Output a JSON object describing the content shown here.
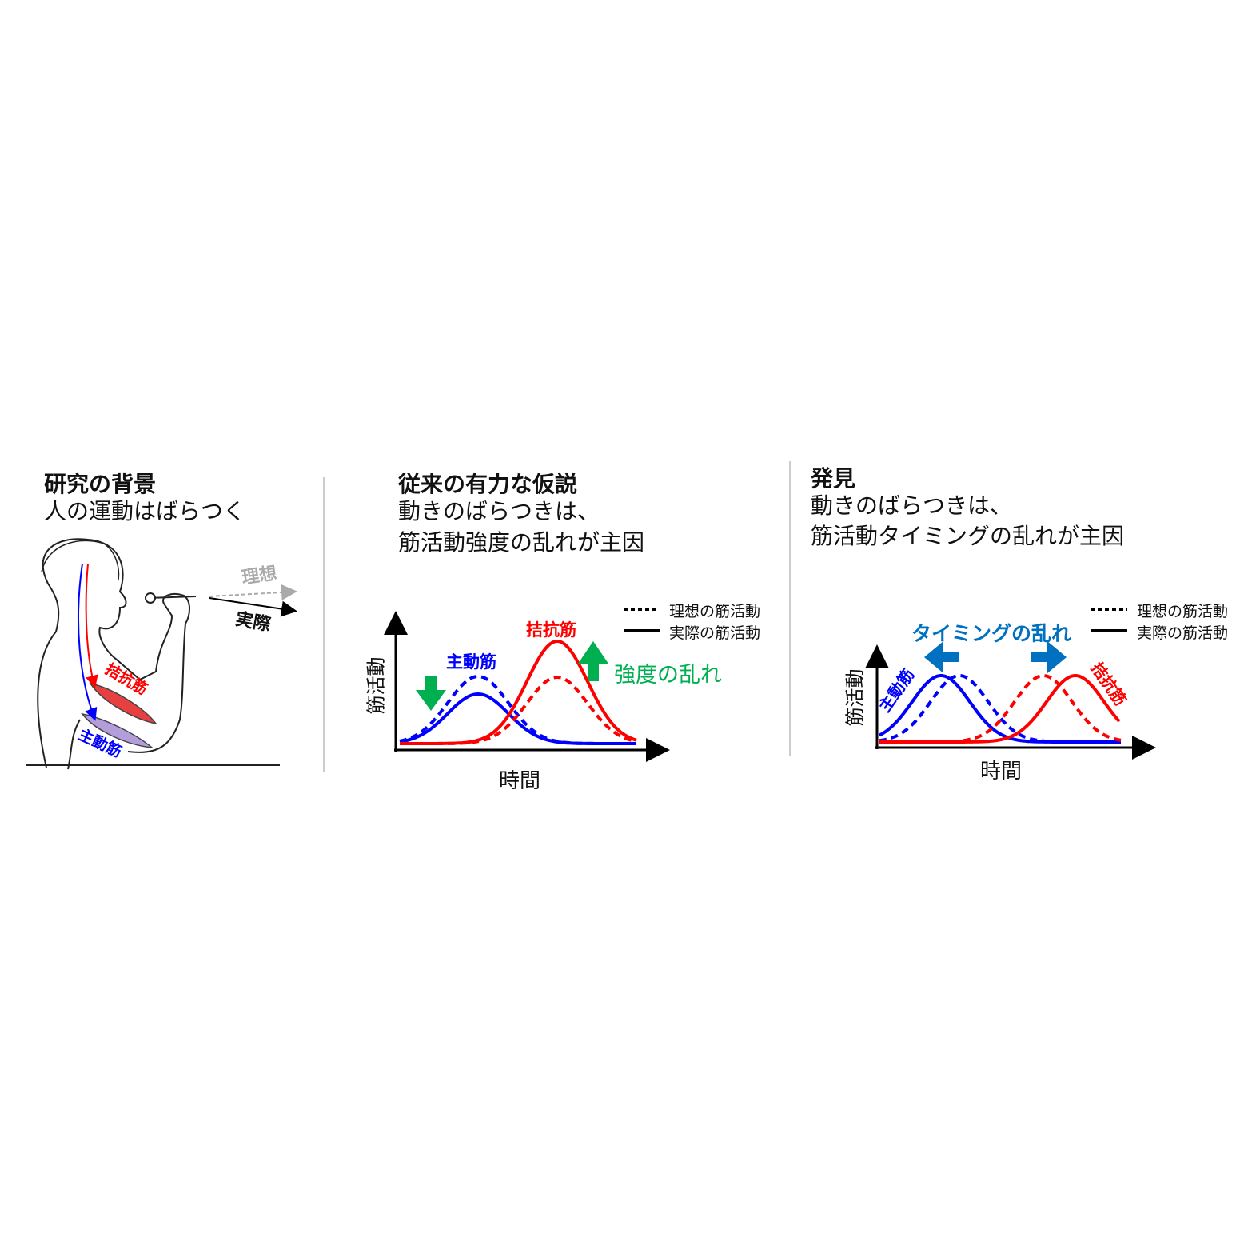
{
  "panel1": {
    "heading": "研究の背景",
    "subtitle": "人の運動はばらつく",
    "ideal": "理想",
    "actual": "実際",
    "antagonist": "拮抗筋",
    "agonist": "主動筋"
  },
  "panel2": {
    "heading": "従来の有力な仮説",
    "line1": "動きのばらつきは、",
    "line2": "筋活動強度の乱れが主因",
    "ylabel": "筋活動",
    "xlabel": "時間",
    "agonist": "主動筋",
    "antagonist": "拮抗筋",
    "annotation": "強度の乱れ",
    "legend_ideal": "理想の筋活動",
    "legend_actual": "実際の筋活動"
  },
  "panel3": {
    "heading": "発見",
    "line1": "動きのばらつきは、",
    "line2": "筋活動タイミングの乱れが主因",
    "ylabel": "筋活動",
    "xlabel": "時間",
    "agonist": "主動筋",
    "antagonist": "拮抗筋",
    "annotation": "タイミングの乱れ",
    "legend_ideal": "理想の筋活動",
    "legend_actual": "実際の筋活動"
  },
  "colors": {
    "agonist": "#0000ff",
    "antagonist": "#ff0000",
    "intensity": "#00b050",
    "timing": "#0070c0",
    "ideal_arrow": "#aaaaaa"
  }
}
